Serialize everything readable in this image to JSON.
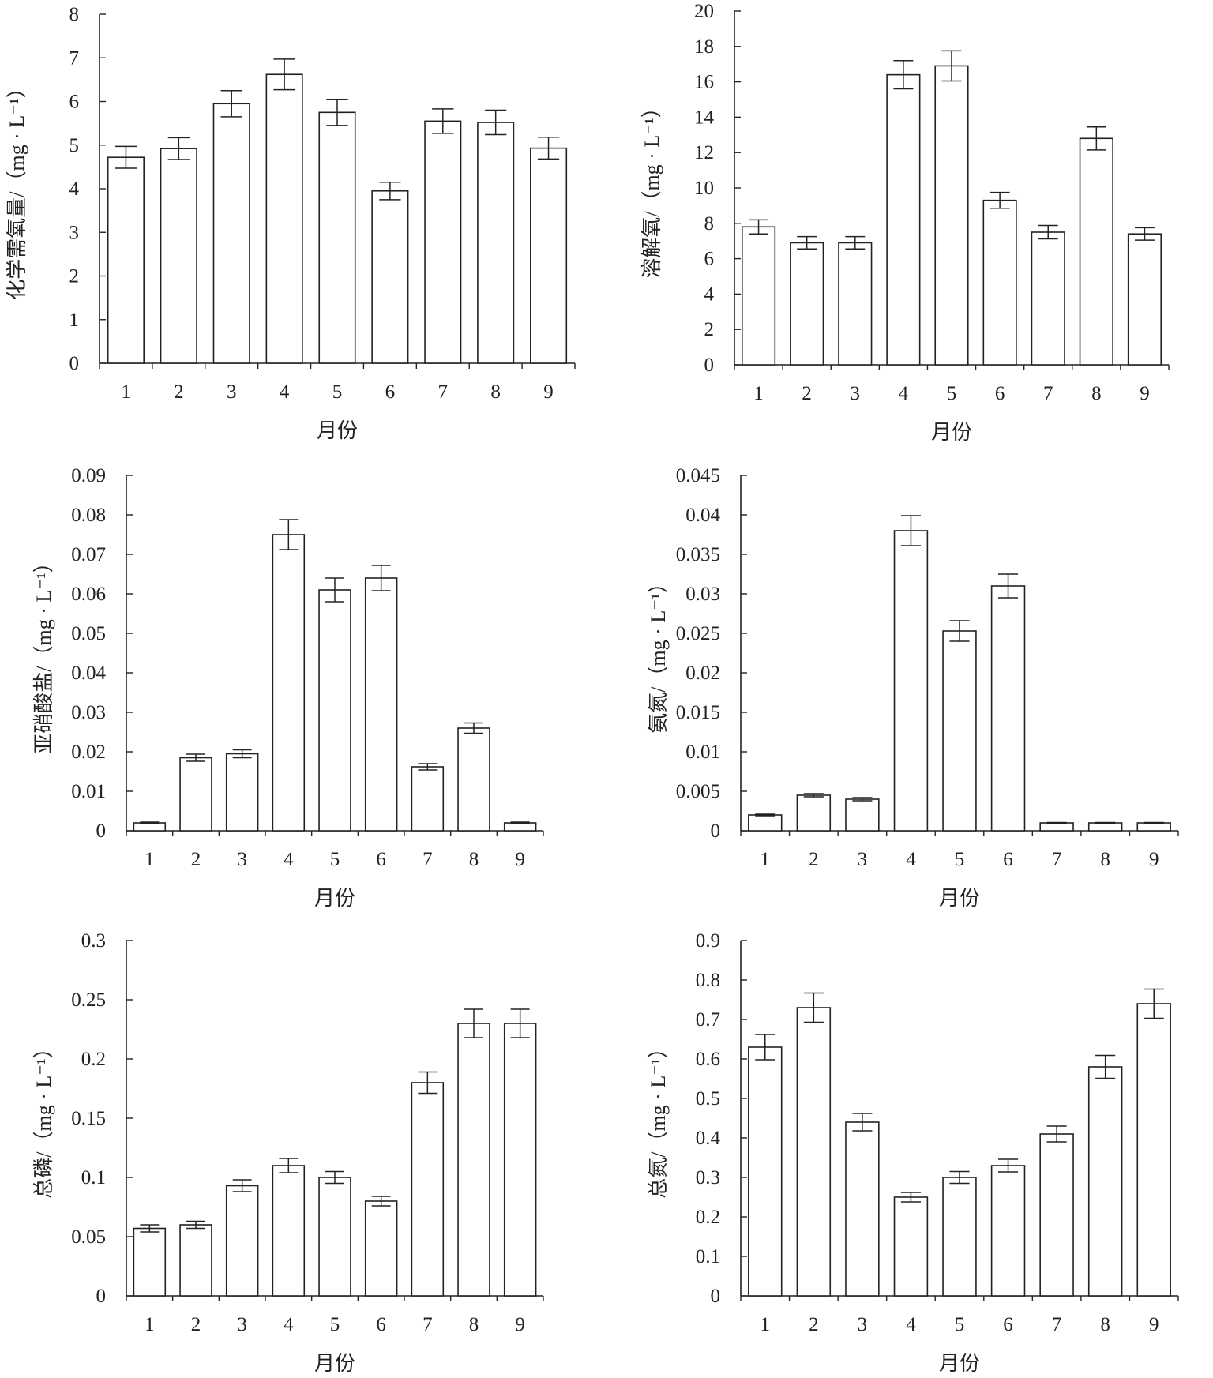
{
  "chart_data": [
    {
      "type": "bar",
      "title": "",
      "xlabel": "月份",
      "ylabel": "化学需氧量/（mg · L⁻¹）",
      "categories": [
        "1",
        "2",
        "3",
        "4",
        "5",
        "6",
        "7",
        "8",
        "9"
      ],
      "values": [
        4.72,
        4.92,
        5.95,
        6.62,
        5.75,
        3.95,
        5.55,
        5.52,
        4.93
      ],
      "errors": [
        0.25,
        0.25,
        0.3,
        0.35,
        0.3,
        0.2,
        0.28,
        0.28,
        0.25
      ],
      "ylim": [
        0,
        8
      ],
      "yticks": [
        "0",
        "1",
        "2",
        "3",
        "4",
        "5",
        "6",
        "7",
        "8"
      ],
      "grid": false,
      "legend": "none"
    },
    {
      "type": "bar",
      "title": "",
      "xlabel": "月份",
      "ylabel": "溶解氧/（mg · L⁻¹）",
      "categories": [
        "1",
        "2",
        "3",
        "4",
        "5",
        "6",
        "7",
        "8",
        "9"
      ],
      "values": [
        7.8,
        6.9,
        6.9,
        16.4,
        16.9,
        9.3,
        7.5,
        12.8,
        7.4
      ],
      "errors": [
        0.4,
        0.35,
        0.35,
        0.8,
        0.85,
        0.45,
        0.38,
        0.65,
        0.35
      ],
      "ylim": [
        0,
        20
      ],
      "yticks": [
        "0",
        "2",
        "4",
        "6",
        "8",
        "10",
        "12",
        "14",
        "16",
        "18",
        "20"
      ],
      "grid": false,
      "legend": "none"
    },
    {
      "type": "bar",
      "title": "",
      "xlabel": "月份",
      "ylabel": "亚硝酸盐/（mg · L⁻¹）",
      "categories": [
        "1",
        "2",
        "3",
        "4",
        "5",
        "6",
        "7",
        "8",
        "9"
      ],
      "values": [
        0.002,
        0.0185,
        0.0195,
        0.075,
        0.061,
        0.064,
        0.0162,
        0.026,
        0.002
      ],
      "errors": [
        0.0002,
        0.0009,
        0.001,
        0.0038,
        0.003,
        0.0032,
        0.0008,
        0.0013,
        0.0002
      ],
      "ylim": [
        0,
        0.09
      ],
      "yticks": [
        "0",
        "0.01",
        "0.02",
        "0.03",
        "0.04",
        "0.05",
        "0.06",
        "0.07",
        "0.08",
        "0.09"
      ],
      "grid": false,
      "legend": "none"
    },
    {
      "type": "bar",
      "title": "",
      "xlabel": "月份",
      "ylabel": "氨氮/（mg · L⁻¹）",
      "categories": [
        "1",
        "2",
        "3",
        "4",
        "5",
        "6",
        "7",
        "8",
        "9"
      ],
      "values": [
        0.002,
        0.0045,
        0.004,
        0.038,
        0.0253,
        0.031,
        0.001,
        0.001,
        0.001
      ],
      "errors": [
        0.0001,
        0.0002,
        0.0002,
        0.0019,
        0.0013,
        0.0015,
        5e-05,
        5e-05,
        5e-05
      ],
      "ylim": [
        0,
        0.045
      ],
      "yticks": [
        "0",
        "0.005",
        "0.01",
        "0.015",
        "0.02",
        "0.025",
        "0.03",
        "0.035",
        "0.04",
        "0.045"
      ],
      "grid": false,
      "legend": "none"
    },
    {
      "type": "bar",
      "title": "",
      "xlabel": "月份",
      "ylabel": "总磷/（mg · L⁻¹）",
      "categories": [
        "1",
        "2",
        "3",
        "4",
        "5",
        "6",
        "7",
        "8",
        "9"
      ],
      "values": [
        0.057,
        0.06,
        0.093,
        0.11,
        0.1,
        0.08,
        0.18,
        0.23,
        0.23
      ],
      "errors": [
        0.003,
        0.003,
        0.005,
        0.006,
        0.005,
        0.004,
        0.009,
        0.012,
        0.012
      ],
      "ylim": [
        0,
        0.3
      ],
      "yticks": [
        "0",
        "0.05",
        "0.1",
        "0.15",
        "0.2",
        "0.25",
        "0.3"
      ],
      "grid": false,
      "legend": "none"
    },
    {
      "type": "bar",
      "title": "",
      "xlabel": "月份",
      "ylabel": "总氮/（mg · L⁻¹）",
      "categories": [
        "1",
        "2",
        "3",
        "4",
        "5",
        "6",
        "7",
        "8",
        "9"
      ],
      "values": [
        0.63,
        0.73,
        0.44,
        0.25,
        0.3,
        0.33,
        0.41,
        0.58,
        0.74
      ],
      "errors": [
        0.032,
        0.037,
        0.022,
        0.012,
        0.015,
        0.016,
        0.02,
        0.029,
        0.037
      ],
      "ylim": [
        0,
        0.9
      ],
      "yticks": [
        "0",
        "0.1",
        "0.2",
        "0.3",
        "0.4",
        "0.5",
        "0.6",
        "0.7",
        "0.8",
        "0.9"
      ],
      "grid": false,
      "legend": "none"
    }
  ]
}
